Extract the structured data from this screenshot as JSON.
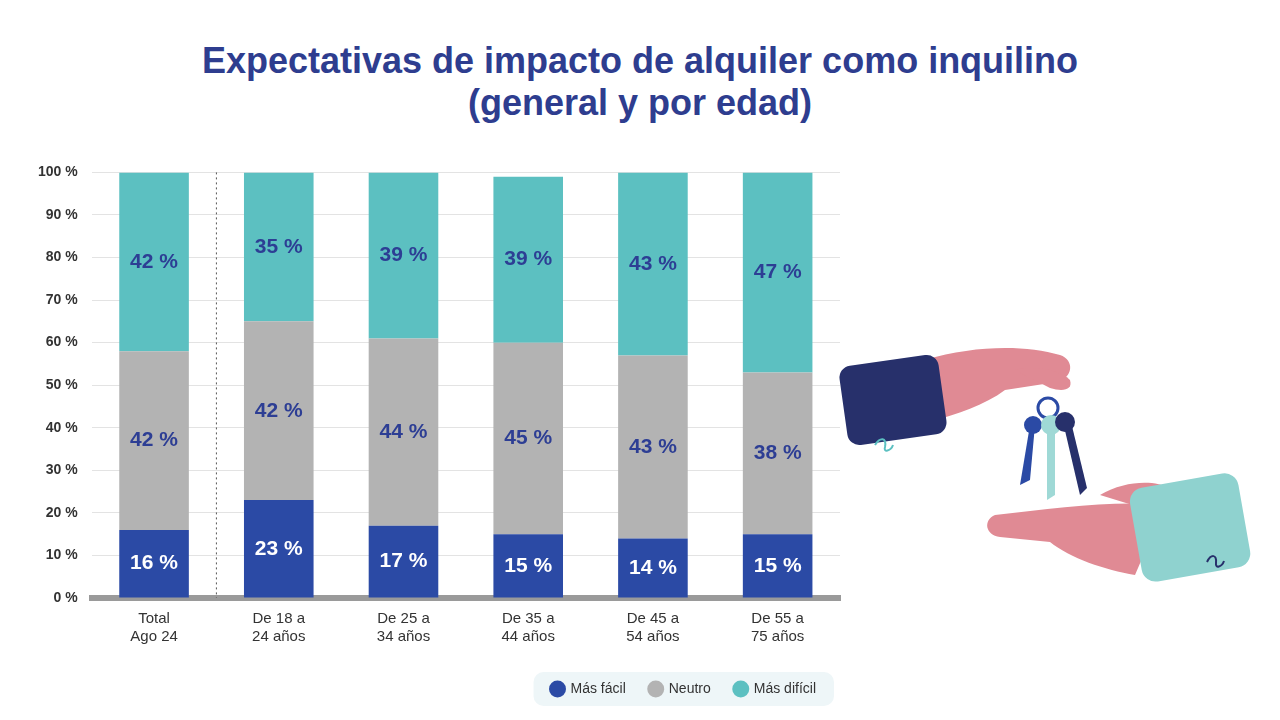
{
  "chart_data": {
    "type": "bar",
    "title": [
      "Expectativas de impacto de alquiler como inquilino",
      "(general y por edad)"
    ],
    "categories": [
      "Total Ago 24",
      "De 18 a 24 años",
      "De 25 a 34 años",
      "De 35 a 44 años",
      "De 45 a 54 años",
      "De 55 a 75 años"
    ],
    "series": [
      {
        "name": "Más fácil",
        "color": "#2b4aa5",
        "values": [
          16,
          23,
          17,
          15,
          14,
          15
        ],
        "value_labels": [
          "16 %",
          "23 %",
          "17 %",
          "15 %",
          "14 %",
          "15 %"
        ]
      },
      {
        "name": "Neutro",
        "color": "#b3b3b3",
        "values": [
          42,
          42,
          44,
          45,
          43,
          38
        ],
        "value_labels": [
          "42 %",
          "42 %",
          "44 %",
          "45 %",
          "43 %",
          "38 %"
        ]
      },
      {
        "name": "Más difícil",
        "color": "#5cc0c1",
        "values": [
          42,
          35,
          39,
          39,
          43,
          47
        ],
        "value_labels": [
          "42 %",
          "35 %",
          "39 %",
          "39 %",
          "43 %",
          "47 %"
        ]
      }
    ],
    "ylim": [
      0,
      100
    ],
    "yticks": [
      {
        "value": 0,
        "label": "0 %"
      },
      {
        "value": 10,
        "label": "10 %"
      },
      {
        "value": 20,
        "label": "20 %"
      },
      {
        "value": 30,
        "label": "30 %"
      },
      {
        "value": 40,
        "label": "40 %"
      },
      {
        "value": 50,
        "label": "50 %"
      },
      {
        "value": 60,
        "label": "60 %"
      },
      {
        "value": 70,
        "label": "70 %"
      },
      {
        "value": 80,
        "label": "80 %"
      },
      {
        "value": 90,
        "label": "90 %"
      },
      {
        "value": 100,
        "label": "100 %"
      }
    ],
    "grid": true,
    "stacked": true,
    "data_labels": true,
    "legend": "bottom"
  }
}
